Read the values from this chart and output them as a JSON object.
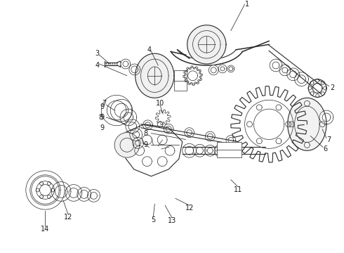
{
  "background_color": "#ffffff",
  "figure_width": 4.9,
  "figure_height": 3.6,
  "dpi": 100,
  "line_color": "#2a2a2a",
  "text_color": "#1a1a1a",
  "label_fontsize": 7.0
}
